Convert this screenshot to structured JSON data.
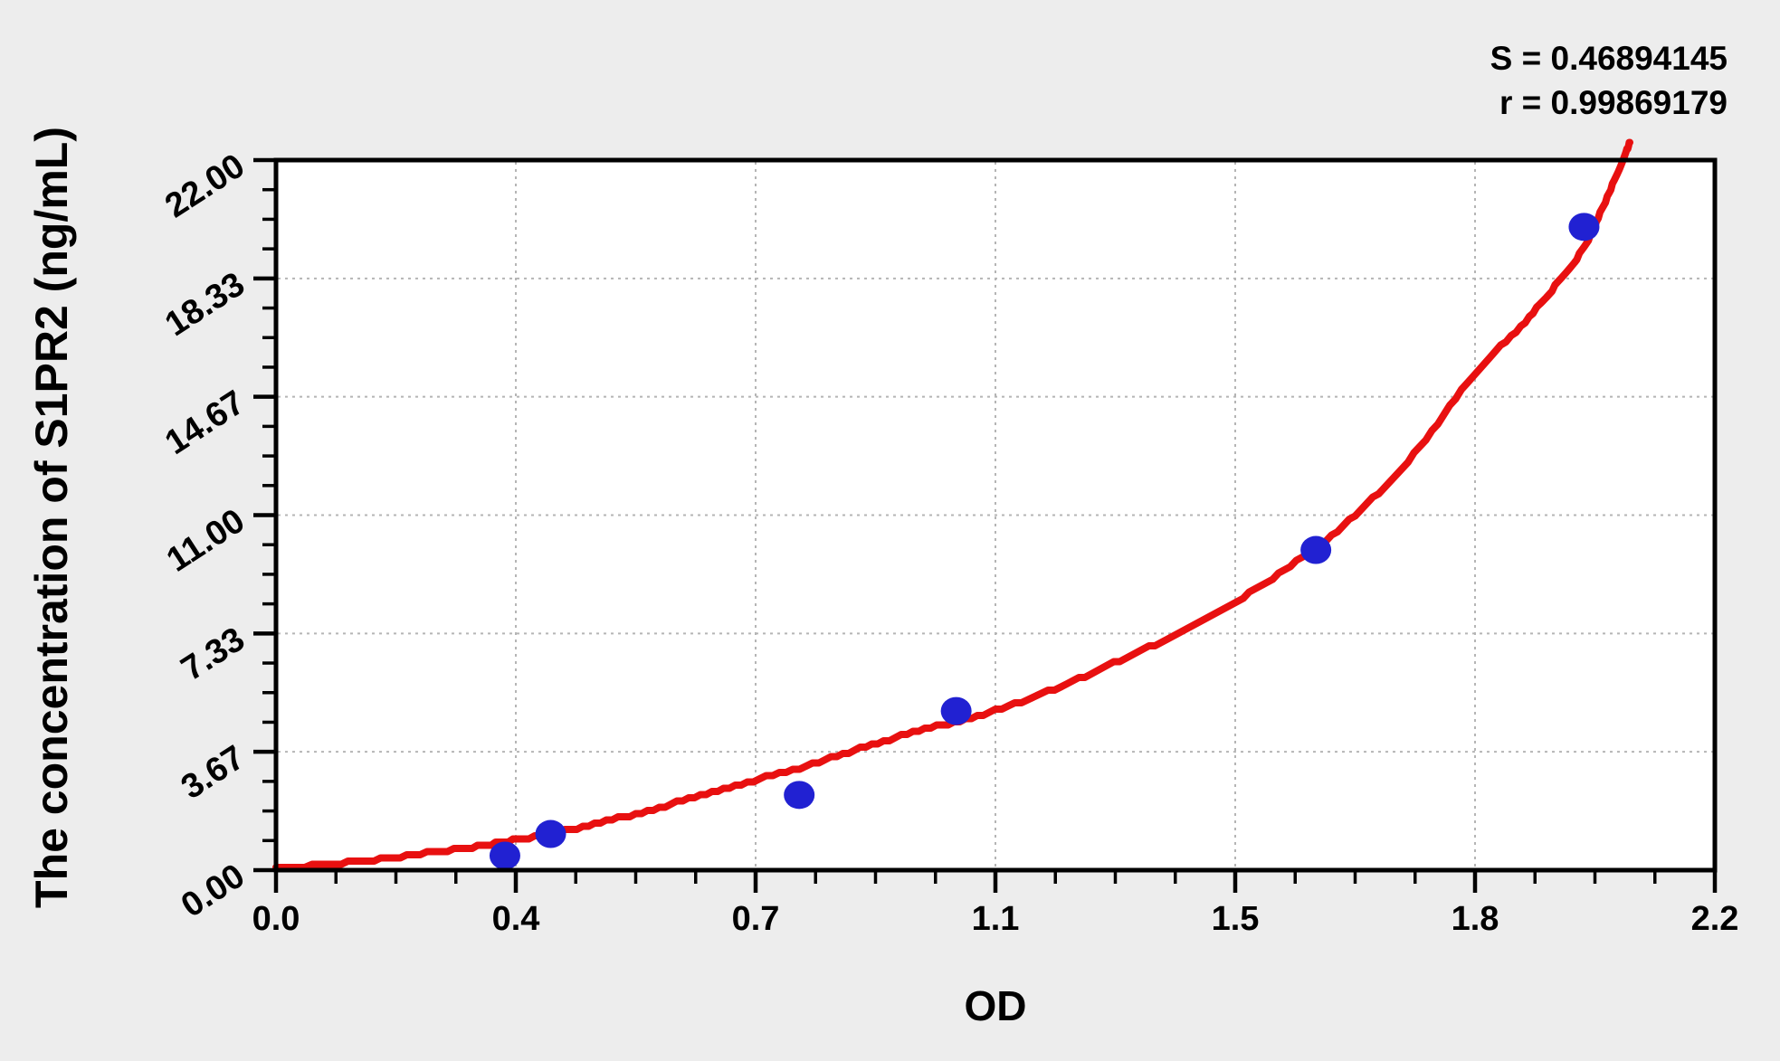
{
  "stats": {
    "s_line": "S = 0.46894145",
    "r_line": "r = 0.99869179"
  },
  "axes": {
    "x_title": "OD",
    "y_title": "The concentration of S1PR2 (ng/mL)"
  },
  "colors": {
    "background": "#ededed",
    "plot_background": "#ffffff",
    "axis": "#000000",
    "grid": "#b5b5b5",
    "curve": "#e81010",
    "point": "#2121d2",
    "text": "#000000"
  },
  "chart_data": {
    "type": "scatter",
    "title": "",
    "xlabel": "OD",
    "ylabel": "The concentration of S1PR2 (ng/mL)",
    "xlim": [
      0,
      2.2
    ],
    "ylim": [
      0,
      22
    ],
    "grid": "dotted-at-major-ticks",
    "legend": "none",
    "stats": {
      "S": "0.46894145",
      "r": "0.99869179"
    },
    "x_ticks": {
      "values": [
        0,
        0.36667,
        0.73333,
        1.1,
        1.46667,
        1.83333,
        2.2
      ],
      "labels": [
        "0.0",
        "0.4",
        "0.7",
        "1.1",
        "1.5",
        "1.8",
        "2.2"
      ],
      "minor_per_interval": 3
    },
    "y_ticks": {
      "values": [
        0,
        3.6667,
        7.3333,
        11,
        14.6667,
        18.3333,
        22
      ],
      "labels": [
        "0.00",
        "3.67",
        "7.33",
        "11.00",
        "14.67",
        "18.33",
        "22.00"
      ],
      "minor_per_interval": 3
    },
    "points": [
      {
        "od": 0.35,
        "conc": 0.45
      },
      {
        "od": 0.42,
        "conc": 1.12
      },
      {
        "od": 0.8,
        "conc": 2.33
      },
      {
        "od": 1.04,
        "conc": 4.93
      },
      {
        "od": 1.59,
        "conc": 9.92
      },
      {
        "od": 2.0,
        "conc": 19.93
      }
    ],
    "fit_curve_samples": [
      [
        0.0,
        0.05
      ],
      [
        0.1,
        0.22
      ],
      [
        0.2,
        0.45
      ],
      [
        0.3,
        0.72
      ],
      [
        0.37,
        0.95
      ],
      [
        0.46,
        1.3
      ],
      [
        0.55,
        1.75
      ],
      [
        0.64,
        2.25
      ],
      [
        0.73,
        2.77
      ],
      [
        0.83,
        3.35
      ],
      [
        0.92,
        3.95
      ],
      [
        1.01,
        4.45
      ],
      [
        1.1,
        4.95
      ],
      [
        1.2,
        5.7
      ],
      [
        1.29,
        6.5
      ],
      [
        1.38,
        7.35
      ],
      [
        1.47,
        8.35
      ],
      [
        1.56,
        9.55
      ],
      [
        1.65,
        11.0
      ],
      [
        1.74,
        12.9
      ],
      [
        1.83,
        15.3
      ],
      [
        1.91,
        17.0
      ],
      [
        1.96,
        18.2
      ],
      [
        2.0,
        19.3
      ],
      [
        2.03,
        20.6
      ],
      [
        2.055,
        21.8
      ],
      [
        2.07,
        22.55
      ]
    ]
  }
}
